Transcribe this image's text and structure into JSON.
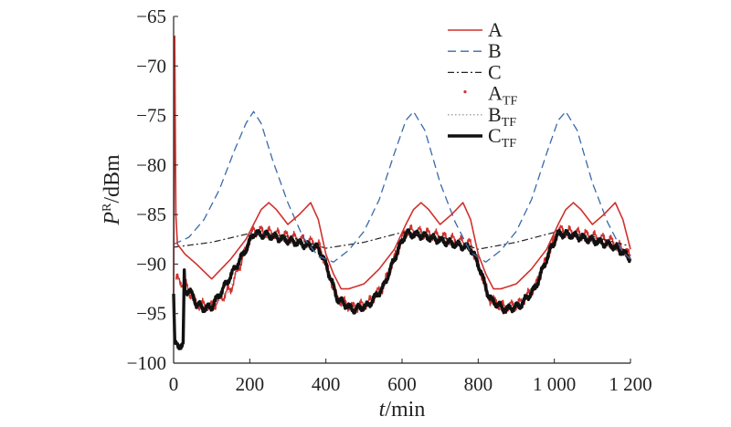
{
  "chart_data": {
    "type": "line",
    "xlabel": {
      "italic": "t",
      "rest": "/min"
    },
    "ylabel": {
      "italic": "P",
      "sup": "R",
      "rest": "/dBm"
    },
    "xlim": [
      0,
      1200
    ],
    "ylim": [
      -100,
      -65
    ],
    "xticks": [
      0,
      200,
      400,
      600,
      800,
      1000,
      1200
    ],
    "xtick_labels": [
      "0",
      "200",
      "400",
      "600",
      "800",
      "1 000",
      "1 200"
    ],
    "yticks": [
      -65,
      -70,
      -75,
      -80,
      -85,
      -90,
      -95,
      -100
    ],
    "ytick_labels": [
      "−65",
      "−70",
      "−75",
      "−80",
      "−85",
      "−90",
      "−95",
      "−100"
    ],
    "grid": false,
    "legend_position": "top-right",
    "series": [
      {
        "name": "A",
        "sub": "",
        "color": "#d0312d",
        "style": "solid",
        "x": [
          0,
          3,
          6,
          10,
          30,
          60,
          100,
          150,
          190,
          210,
          230,
          250,
          270,
          300,
          330,
          360,
          380,
          400,
          420,
          440,
          460,
          500,
          540,
          580,
          610,
          630,
          650,
          670,
          700,
          730,
          760,
          780,
          800,
          820,
          840,
          860,
          900,
          940,
          980,
          1010,
          1030,
          1050,
          1070,
          1100,
          1130,
          1160,
          1180,
          1200
        ],
        "y": [
          -93,
          -67,
          -85,
          -88,
          -89,
          -90,
          -91.5,
          -89.5,
          -87.5,
          -86,
          -84.5,
          -83.8,
          -84.5,
          -86,
          -85,
          -83.8,
          -85.5,
          -89,
          -91,
          -92.5,
          -92.5,
          -92,
          -90.5,
          -88.5,
          -86,
          -84.5,
          -83.8,
          -84.5,
          -86,
          -85,
          -83.8,
          -85.5,
          -89,
          -91,
          -92.5,
          -92.5,
          -92,
          -90.5,
          -88.5,
          -86,
          -84.5,
          -83.8,
          -84.5,
          -86,
          -85,
          -83.8,
          -85.5,
          -88.5
        ]
      },
      {
        "name": "B",
        "sub": "",
        "color": "#3a6aa8",
        "style": "dashed",
        "x": [
          0,
          40,
          80,
          120,
          160,
          190,
          210,
          230,
          260,
          300,
          340,
          380,
          420,
          460,
          500,
          540,
          580,
          610,
          630,
          660,
          700,
          740,
          780,
          820,
          860,
          900,
          940,
          980,
          1010,
          1030,
          1060,
          1100,
          1140,
          1180,
          1200
        ],
        "y": [
          -88,
          -87.3,
          -85.5,
          -82.5,
          -78.5,
          -75.8,
          -74.6,
          -75.8,
          -79.5,
          -83.8,
          -87.3,
          -89.2,
          -89.8,
          -88.6,
          -86.7,
          -83.5,
          -78.8,
          -75.5,
          -74.6,
          -76.5,
          -81.8,
          -85.8,
          -88.8,
          -89.8,
          -88.6,
          -86.7,
          -83.5,
          -78.8,
          -75.5,
          -74.6,
          -76.5,
          -81.8,
          -85.8,
          -88.8,
          -89.5
        ]
      },
      {
        "name": "C",
        "sub": "",
        "color": "#222222",
        "style": "dashdot",
        "x": [
          0,
          100,
          200,
          300,
          400,
          500,
          600,
          700,
          800,
          900,
          1000,
          1100,
          1200
        ],
        "y": [
          -88.3,
          -87.8,
          -86.9,
          -87.2,
          -88.4,
          -87.8,
          -86.8,
          -87.2,
          -88.5,
          -87.8,
          -86.8,
          -87.2,
          -88.2
        ]
      },
      {
        "name": "A",
        "sub": "TF",
        "color": "#d0312d",
        "style": "noisy",
        "x": [
          5,
          30,
          60,
          100,
          150,
          190,
          210,
          250,
          300,
          350,
          380,
          400,
          430,
          470,
          510,
          550,
          590,
          610,
          650,
          700,
          750,
          780,
          800,
          830,
          870,
          910,
          950,
          990,
          1010,
          1050,
          1100,
          1150,
          1180,
          1200
        ],
        "y": [
          -91.5,
          -92,
          -94,
          -94.3,
          -92.5,
          -88.5,
          -86.6,
          -86.8,
          -87.2,
          -87.7,
          -88,
          -90,
          -93.5,
          -94.4,
          -94,
          -92.3,
          -88.5,
          -86.6,
          -86.8,
          -87.2,
          -87.7,
          -88,
          -90,
          -93.5,
          -94.4,
          -94,
          -92.3,
          -88.5,
          -86.6,
          -86.8,
          -87.2,
          -87.7,
          -88.5,
          -89.2
        ]
      },
      {
        "name": "B",
        "sub": "TF",
        "color": "#888888",
        "style": "dotted",
        "x": [
          5,
          30,
          60,
          100,
          150,
          190,
          210,
          250,
          300,
          350,
          380,
          400,
          430,
          470,
          510,
          550,
          590,
          610,
          650,
          700,
          750,
          780,
          800,
          830,
          870,
          910,
          950,
          990,
          1010,
          1050,
          1100,
          1150,
          1180,
          1200
        ],
        "y": [
          -91.5,
          -92,
          -94,
          -94.3,
          -92.5,
          -88.5,
          -86.9,
          -87.1,
          -87.5,
          -88,
          -88.3,
          -90,
          -93.5,
          -94.4,
          -94,
          -92.3,
          -88.5,
          -86.9,
          -87.1,
          -87.5,
          -88,
          -88.3,
          -90,
          -93.5,
          -94.4,
          -94,
          -92.3,
          -88.5,
          -86.9,
          -87.1,
          -87.5,
          -88,
          -88.8,
          -89.4
        ]
      },
      {
        "name": "C",
        "sub": "TF",
        "color": "#111111",
        "style": "thick",
        "x": [
          0,
          3,
          6,
          9,
          25,
          28,
          30,
          40,
          60,
          80,
          100,
          130,
          160,
          190,
          210,
          250,
          300,
          350,
          380,
          400,
          430,
          470,
          510,
          550,
          590,
          610,
          650,
          700,
          750,
          780,
          800,
          830,
          870,
          910,
          950,
          990,
          1010,
          1050,
          1100,
          1150,
          1180,
          1200
        ],
        "y": [
          -93,
          -98,
          -98.2,
          -98.2,
          -98.2,
          -91,
          -93,
          -92.5,
          -94,
          -94.5,
          -94.3,
          -92.5,
          -90.5,
          -88.5,
          -86.9,
          -87.1,
          -87.6,
          -88.1,
          -88.4,
          -90,
          -93.5,
          -94.6,
          -94.2,
          -92.4,
          -88.5,
          -86.9,
          -87.1,
          -87.6,
          -88.1,
          -88.4,
          -90,
          -93.5,
          -94.6,
          -94.2,
          -92.4,
          -88.5,
          -86.9,
          -87.1,
          -87.6,
          -88.1,
          -88.8,
          -89.4
        ]
      }
    ]
  }
}
